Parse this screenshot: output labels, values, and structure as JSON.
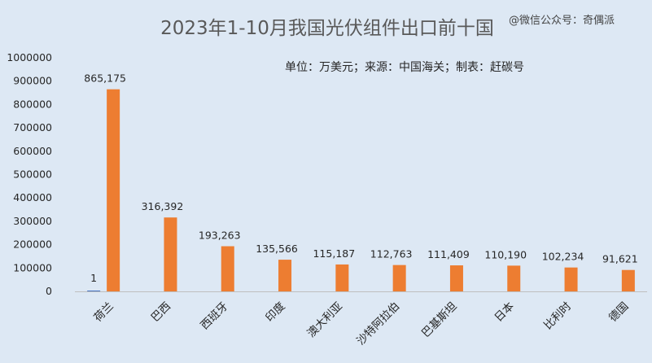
{
  "chart_data": {
    "type": "bar",
    "title": "2023年1-10月我国光伏组件出口前十国",
    "subtitle": "单位：万美元；来源：中国海关；制表：赶碳号",
    "watermark": "@微信公众号：奇偶派",
    "xlabel": "",
    "ylabel": "",
    "categories": [
      "荷兰",
      "巴西",
      "西班牙",
      "印度",
      "澳大利亚",
      "沙特阿拉伯",
      "巴基斯坦",
      "日本",
      "比利时",
      "德国"
    ],
    "series": [
      {
        "name": "",
        "color": "#4472c4",
        "values": [
          1,
          null,
          null,
          null,
          null,
          null,
          null,
          null,
          null,
          null
        ],
        "labels": [
          "1",
          "",
          "",
          "",
          "",
          "",
          "",
          "",
          "",
          ""
        ]
      },
      {
        "name": "",
        "color": "#ed7d31",
        "values": [
          865175,
          316392,
          193263,
          135566,
          115187,
          112763,
          111409,
          110190,
          102234,
          91621
        ],
        "labels": [
          "865,175",
          "316,392",
          "193,263",
          "135,566",
          "115,187",
          "112,763",
          "111,409",
          "110,190",
          "102,234",
          "91,621"
        ]
      }
    ],
    "yticks": [
      "0",
      "100000",
      "200000",
      "300000",
      "400000",
      "500000",
      "600000",
      "700000",
      "800000",
      "900000",
      "1000000"
    ],
    "ylim": [
      0,
      1000000
    ],
    "grid": false,
    "legend": "none"
  }
}
